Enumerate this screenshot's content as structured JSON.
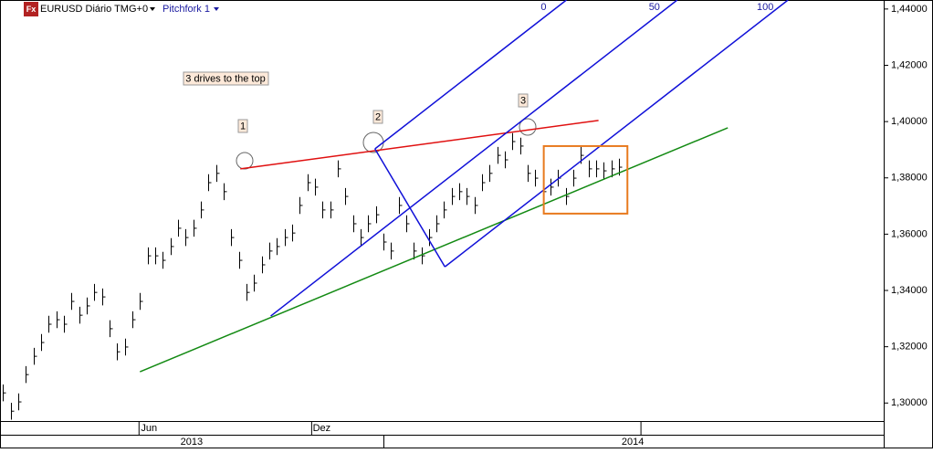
{
  "header": {
    "symbol": "EURUSD Diário TMG+0",
    "tool": "Pitchfork 1",
    "icon": "Fx"
  },
  "annotations": {
    "title": "3 drives to the top",
    "drives": [
      "1",
      "2",
      "3"
    ]
  },
  "chart_data": {
    "type": "ohlc",
    "xlim": [
      -0.4,
      115.8
    ],
    "xticks": [
      {
        "value": 19.2,
        "label": "Jun"
      },
      {
        "value": 41.9,
        "label": "Dez"
      }
    ],
    "year_labels": [
      {
        "value": 24.8,
        "label": "2013"
      },
      {
        "value": 82.8,
        "label": "2014"
      }
    ],
    "ylim": [
      1.2936,
      1.4432
    ],
    "yticks": [
      {
        "value": 1.44,
        "label": "1,44000"
      },
      {
        "value": 1.42,
        "label": "1,42000"
      },
      {
        "value": 1.4,
        "label": "1,40000"
      },
      {
        "value": 1.38,
        "label": "1,38000"
      },
      {
        "value": 1.36,
        "label": "1,36000"
      },
      {
        "value": 1.34,
        "label": "1,34000"
      },
      {
        "value": 1.32,
        "label": "1,32000"
      },
      {
        "value": 1.3,
        "label": "1,30000"
      }
    ],
    "color": "#000000",
    "high": [
      1.3066,
      1.3001,
      1.3034,
      1.3131,
      1.3196,
      1.3245,
      1.331,
      1.3326,
      1.331,
      1.3391,
      1.3342,
      1.3375,
      1.3423,
      1.3407,
      1.3294,
      1.3212,
      1.3229,
      1.3326,
      1.3391,
      1.3553,
      1.3553,
      1.3537,
      1.3586,
      1.3651,
      1.3618,
      1.3651,
      1.3716,
      1.3813,
      1.3846,
      1.3781,
      1.3618,
      1.3537,
      1.3423,
      1.3456,
      1.3521,
      1.357,
      1.3586,
      1.3618,
      1.3634,
      1.3732,
      1.3813,
      1.3797,
      1.3716,
      1.3716,
      1.3862,
      1.3764,
      1.3667,
      1.3618,
      1.3667,
      1.3699,
      1.3602,
      1.357,
      1.3732,
      1.3667,
      1.357,
      1.3553,
      1.3618,
      1.3667,
      1.3716,
      1.3764,
      1.3781,
      1.3764,
      1.3732,
      1.3813,
      1.3846,
      1.391,
      1.3894,
      1.3959,
      1.3943,
      1.3846,
      1.3829,
      1.3781,
      1.3797,
      1.3829,
      1.3764,
      1.3829,
      1.391,
      1.3862,
      1.3862,
      1.3855,
      1.3862,
      1.3868
    ],
    "low": [
      1.3006,
      1.2941,
      1.2974,
      1.3071,
      1.3136,
      1.3185,
      1.325,
      1.3266,
      1.325,
      1.3331,
      1.3282,
      1.3315,
      1.3363,
      1.3347,
      1.3234,
      1.3152,
      1.3169,
      1.3266,
      1.3331,
      1.3493,
      1.3493,
      1.3477,
      1.3526,
      1.3591,
      1.3558,
      1.3591,
      1.3656,
      1.3753,
      1.3786,
      1.3721,
      1.3558,
      1.3477,
      1.3363,
      1.3396,
      1.3461,
      1.351,
      1.3526,
      1.3558,
      1.3574,
      1.3672,
      1.3753,
      1.3737,
      1.3656,
      1.3656,
      1.3802,
      1.3704,
      1.3607,
      1.3558,
      1.3607,
      1.3639,
      1.3542,
      1.351,
      1.3672,
      1.3607,
      1.351,
      1.3493,
      1.3558,
      1.3607,
      1.3656,
      1.3704,
      1.3721,
      1.3704,
      1.3672,
      1.3753,
      1.3786,
      1.385,
      1.3834,
      1.3899,
      1.3883,
      1.3786,
      1.3769,
      1.3721,
      1.3737,
      1.3769,
      1.3704,
      1.3769,
      1.385,
      1.3802,
      1.3802,
      1.3795,
      1.3802,
      1.3808
    ],
    "close": [
      1.3036,
      1.2971,
      1.3004,
      1.3101,
      1.3166,
      1.3215,
      1.328,
      1.3296,
      1.328,
      1.3361,
      1.3312,
      1.3345,
      1.3393,
      1.3377,
      1.3264,
      1.3182,
      1.3199,
      1.3296,
      1.3361,
      1.3523,
      1.3523,
      1.3507,
      1.3556,
      1.3621,
      1.3588,
      1.3621,
      1.3686,
      1.3783,
      1.3816,
      1.3751,
      1.3588,
      1.3507,
      1.3393,
      1.3426,
      1.3491,
      1.354,
      1.3556,
      1.3588,
      1.3604,
      1.3702,
      1.3783,
      1.3767,
      1.3686,
      1.3686,
      1.3832,
      1.3734,
      1.3637,
      1.3588,
      1.3637,
      1.3669,
      1.3572,
      1.354,
      1.3702,
      1.3637,
      1.354,
      1.3523,
      1.3588,
      1.3637,
      1.3686,
      1.3734,
      1.3751,
      1.3734,
      1.3702,
      1.3783,
      1.3816,
      1.388,
      1.3864,
      1.3929,
      1.3913,
      1.3816,
      1.3799,
      1.3751,
      1.3767,
      1.3799,
      1.3734,
      1.3799,
      1.388,
      1.3832,
      1.3832,
      1.3825,
      1.3832,
      1.3838
    ],
    "trendlines": [
      {
        "color": "#138a13",
        "x": [
          18.0,
          95.3
        ],
        "y": [
          1.3111,
          1.3978
        ]
      },
      {
        "color": "#e01010",
        "x": [
          31.2,
          78.3
        ],
        "y": [
          1.3832,
          1.4004
        ]
      }
    ],
    "pitchfork": {
      "color": "#1010d8",
      "x": [
        35.2,
        48.9,
        58.1
      ],
      "y": [
        1.3309,
        1.3903,
        1.3484
      ],
      "levels": [
        0,
        50,
        100
      ]
    },
    "box": {
      "color": "#e87a1e",
      "x": [
        71.1,
        82.1
      ],
      "y": [
        1.3673,
        1.3913
      ]
    }
  }
}
